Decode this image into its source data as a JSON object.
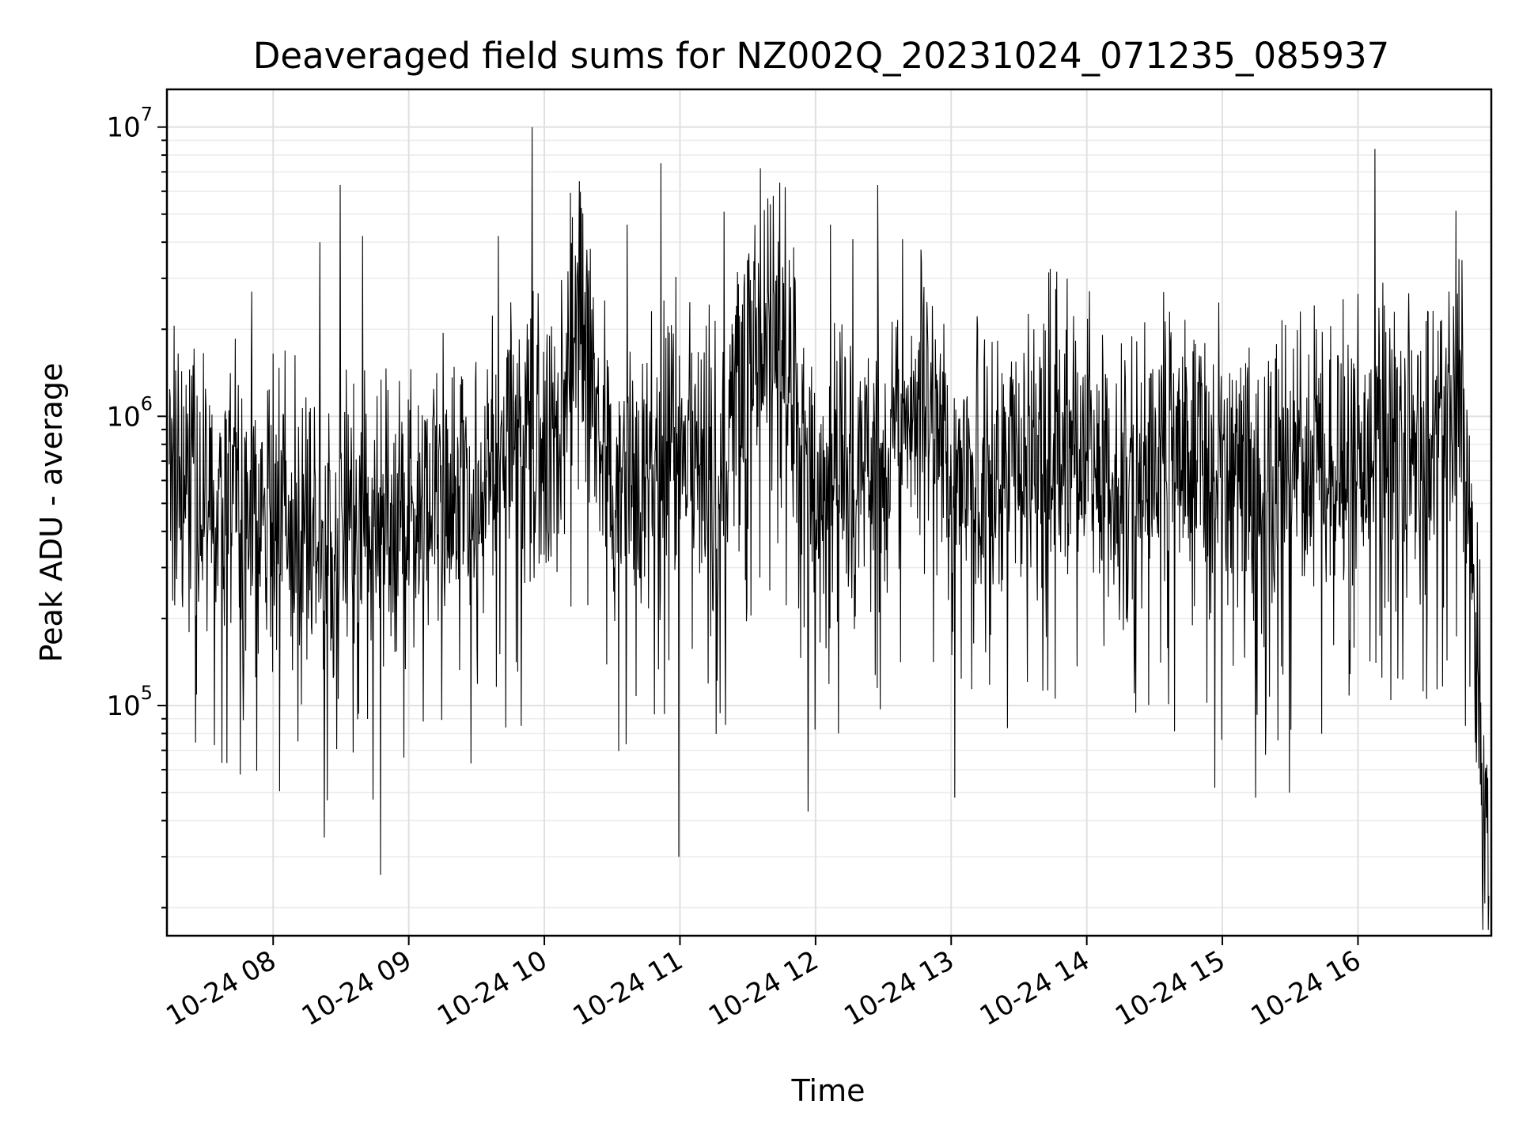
{
  "chart_data": {
    "type": "line",
    "title": "Deaveraged field sums for NZ002Q_20231024_071235_085937",
    "xlabel": "Time",
    "ylabel": "Peak ADU - average",
    "yscale": "log",
    "xlim": [
      "2023-10-24 07:13",
      "2023-10-24 16:59"
    ],
    "ylim": [
      16000,
      13500000
    ],
    "grid": true,
    "x_tick_labels": [
      "10-24 08",
      "10-24 09",
      "10-24 10",
      "10-24 11",
      "10-24 12",
      "10-24 13",
      "10-24 14",
      "10-24 15",
      "10-24 16"
    ],
    "x_ticks": [
      "2023-10-24 08:00",
      "2023-10-24 09:00",
      "2023-10-24 10:00",
      "2023-10-24 11:00",
      "2023-10-24 12:00",
      "2023-10-24 13:00",
      "2023-10-24 14:00",
      "2023-10-24 15:00",
      "2023-10-24 16:00"
    ],
    "y_ticks": [
      {
        "value": 100000,
        "base": "10",
        "exp": "5"
      },
      {
        "value": 1000000,
        "base": "10",
        "exp": "6"
      },
      {
        "value": 10000000,
        "base": "10",
        "exp": "7"
      }
    ],
    "series": [
      {
        "color": "#000000",
        "x": [
          "2023-10-24 07:15",
          "2023-10-24 07:30",
          "2023-10-24 07:45",
          "2023-10-24 08:00",
          "2023-10-24 08:15",
          "2023-10-24 08:30",
          "2023-10-24 08:45",
          "2023-10-24 09:00",
          "2023-10-24 09:15",
          "2023-10-24 09:30",
          "2023-10-24 09:45",
          "2023-10-24 10:00",
          "2023-10-24 10:15",
          "2023-10-24 10:30",
          "2023-10-24 10:45",
          "2023-10-24 11:00",
          "2023-10-24 11:15",
          "2023-10-24 11:30",
          "2023-10-24 11:45",
          "2023-10-24 12:00",
          "2023-10-24 12:15",
          "2023-10-24 12:30",
          "2023-10-24 12:45",
          "2023-10-24 13:00",
          "2023-10-24 13:15",
          "2023-10-24 13:30",
          "2023-10-24 13:45",
          "2023-10-24 14:00",
          "2023-10-24 14:15",
          "2023-10-24 14:30",
          "2023-10-24 14:45",
          "2023-10-24 15:00",
          "2023-10-24 15:15",
          "2023-10-24 15:30",
          "2023-10-24 15:45",
          "2023-10-24 16:00",
          "2023-10-24 16:15",
          "2023-10-24 16:30",
          "2023-10-24 16:45",
          "2023-10-24 16:58"
        ],
        "y": [
          600000,
          550000,
          480000,
          450000,
          420000,
          400000,
          380000,
          450000,
          500000,
          480000,
          800000,
          650000,
          2500000,
          500000,
          550000,
          800000,
          600000,
          1200000,
          2000000,
          500000,
          600000,
          700000,
          1200000,
          700000,
          650000,
          700000,
          850000,
          750000,
          650000,
          700000,
          700000,
          650000,
          550000,
          600000,
          700000,
          700000,
          750000,
          700000,
          1500000,
          25000
        ],
        "spikes": [
          {
            "x": "2023-10-24 07:51",
            "y": 2700000
          },
          {
            "x": "2023-10-24 08:21",
            "y": 4000000
          },
          {
            "x": "2023-10-24 08:30",
            "y": 6300000
          },
          {
            "x": "2023-10-24 08:40",
            "y": 4200000
          },
          {
            "x": "2023-10-24 08:23",
            "y": 35000
          },
          {
            "x": "2023-10-24 08:48",
            "y": 26000
          },
          {
            "x": "2023-10-24 09:40",
            "y": 4200000
          },
          {
            "x": "2023-10-24 09:55",
            "y": 10000000
          },
          {
            "x": "2023-10-24 10:16",
            "y": 6500000
          },
          {
            "x": "2023-10-24 10:37",
            "y": 4600000
          },
          {
            "x": "2023-10-24 10:52",
            "y": 7500000
          },
          {
            "x": "2023-10-24 11:00",
            "y": 30000
          },
          {
            "x": "2023-10-24 11:20",
            "y": 5100000
          },
          {
            "x": "2023-10-24 11:36",
            "y": 7200000
          },
          {
            "x": "2023-10-24 11:47",
            "y": 6200000
          },
          {
            "x": "2023-10-24 11:57",
            "y": 43000
          },
          {
            "x": "2023-10-24 12:07",
            "y": 4600000
          },
          {
            "x": "2023-10-24 12:17",
            "y": 4100000
          },
          {
            "x": "2023-10-24 12:28",
            "y": 6300000
          },
          {
            "x": "2023-10-24 12:39",
            "y": 4100000
          },
          {
            "x": "2023-10-24 13:02",
            "y": 48000
          },
          {
            "x": "2023-10-24 13:37",
            "y": 2000000
          },
          {
            "x": "2023-10-24 14:57",
            "y": 52000
          },
          {
            "x": "2023-10-24 15:15",
            "y": 48000
          },
          {
            "x": "2023-10-24 15:30",
            "y": 50000
          },
          {
            "x": "2023-10-24 16:08",
            "y": 8400000
          },
          {
            "x": "2023-10-24 16:45",
            "y": 3500000
          }
        ]
      }
    ]
  }
}
